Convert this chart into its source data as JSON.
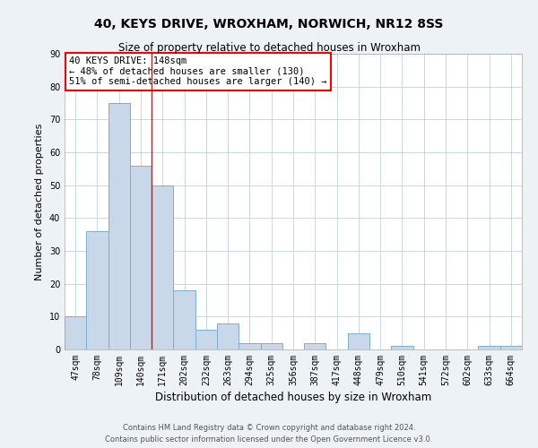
{
  "title": "40, KEYS DRIVE, WROXHAM, NORWICH, NR12 8SS",
  "subtitle": "Size of property relative to detached houses in Wroxham",
  "xlabel": "Distribution of detached houses by size in Wroxham",
  "ylabel": "Number of detached properties",
  "bar_color": "#c8d8e8",
  "bar_edge_color": "#7bafd4",
  "categories": [
    "47sqm",
    "78sqm",
    "109sqm",
    "140sqm",
    "171sqm",
    "202sqm",
    "232sqm",
    "263sqm",
    "294sqm",
    "325sqm",
    "356sqm",
    "387sqm",
    "417sqm",
    "448sqm",
    "479sqm",
    "510sqm",
    "541sqm",
    "572sqm",
    "602sqm",
    "633sqm",
    "664sqm"
  ],
  "values": [
    10,
    36,
    75,
    56,
    50,
    18,
    6,
    8,
    2,
    2,
    0,
    2,
    0,
    5,
    0,
    1,
    0,
    0,
    0,
    1,
    1
  ],
  "ylim": [
    0,
    90
  ],
  "yticks": [
    0,
    10,
    20,
    30,
    40,
    50,
    60,
    70,
    80,
    90
  ],
  "red_line_index": 3,
  "annotation_title": "40 KEYS DRIVE: 148sqm",
  "annotation_line1": "← 48% of detached houses are smaller (130)",
  "annotation_line2": "51% of semi-detached houses are larger (140) →",
  "footer1": "Contains HM Land Registry data © Crown copyright and database right 2024.",
  "footer2": "Contains public sector information licensed under the Open Government Licence v3.0.",
  "background_color": "#edf2f7",
  "plot_bg_color": "#ffffff",
  "grid_color": "#c8d8e8",
  "title_fontsize": 10,
  "subtitle_fontsize": 8.5,
  "ylabel_fontsize": 8,
  "xlabel_fontsize": 8.5,
  "tick_fontsize": 7,
  "ann_fontsize": 7.5,
  "footer_fontsize": 6
}
